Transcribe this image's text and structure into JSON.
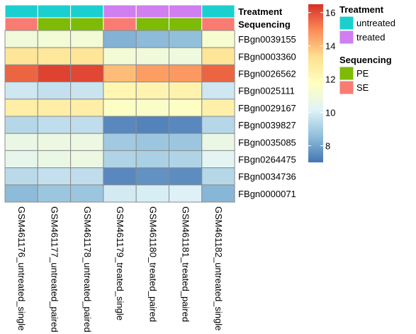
{
  "chart_data": {
    "type": "heatmap",
    "columns": [
      "GSM461176_untreated_single",
      "GSM461177_untreated_paired",
      "GSM461178_untreated_paired",
      "GSM461179_treated_single",
      "GSM461180_treated_paired",
      "GSM461181_treated_paired",
      "GSM461182_untreated_single"
    ],
    "rows": [
      "FBgn0039155",
      "FBgn0003360",
      "FBgn0026562",
      "FBgn0025111",
      "FBgn0029167",
      "FBgn0039827",
      "FBgn0035085",
      "FBgn0264475",
      "FBgn0034736",
      "FBgn0000071"
    ],
    "values": [
      [
        11.0,
        11.1,
        11.1,
        8.3,
        8.5,
        8.6,
        11.3
      ],
      [
        13.1,
        13.0,
        13.1,
        11.1,
        11.0,
        10.9,
        13.1
      ],
      [
        15.6,
        16.2,
        16.1,
        14.0,
        14.6,
        14.7,
        15.6
      ],
      [
        9.8,
        9.6,
        9.7,
        12.2,
        12.3,
        12.4,
        9.8
      ],
      [
        12.6,
        12.6,
        12.6,
        11.6,
        11.5,
        11.6,
        12.5
      ],
      [
        9.3,
        9.5,
        9.5,
        7.4,
        7.3,
        7.4,
        9.3
      ],
      [
        10.7,
        10.8,
        10.8,
        8.9,
        8.8,
        8.8,
        10.7
      ],
      [
        10.5,
        10.7,
        10.8,
        9.2,
        9.1,
        9.2,
        10.3
      ],
      [
        9.4,
        9.6,
        9.5,
        7.4,
        7.6,
        7.5,
        9.3
      ],
      [
        8.5,
        8.8,
        8.8,
        9.9,
        10.0,
        10.1,
        8.4
      ]
    ],
    "color_scale": {
      "min": 7.0,
      "max": 16.5,
      "stops": [
        "#4575b4",
        "#91bfdb",
        "#e0f3f8",
        "#ffffbf",
        "#fee090",
        "#fc8d59",
        "#d73027"
      ],
      "ticks": [
        8,
        10,
        12,
        14,
        16
      ]
    },
    "annotations": [
      {
        "name": "Treatment",
        "values": [
          "untreated",
          "untreated",
          "untreated",
          "treated",
          "treated",
          "treated",
          "untreated"
        ],
        "legend": [
          {
            "label": "untreated",
            "color": "#1ccfcf"
          },
          {
            "label": "treated",
            "color": "#d07ef0"
          }
        ]
      },
      {
        "name": "Sequencing",
        "values": [
          "SE",
          "PE",
          "PE",
          "SE",
          "PE",
          "PE",
          "SE"
        ],
        "legend": [
          {
            "label": "PE",
            "color": "#7dbb06"
          },
          {
            "label": "SE",
            "color": "#f97b72"
          }
        ]
      }
    ]
  }
}
